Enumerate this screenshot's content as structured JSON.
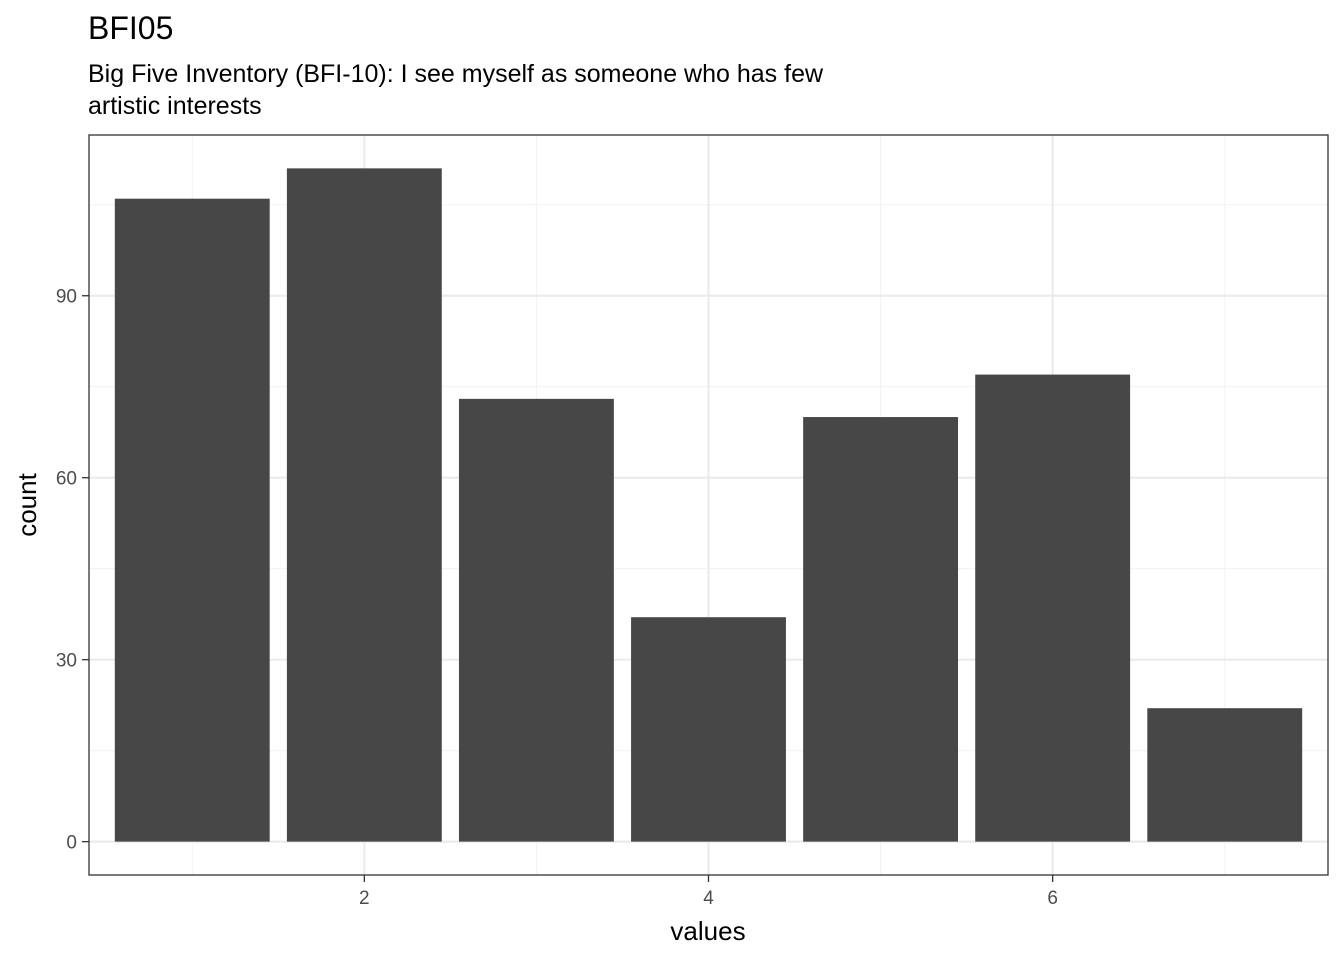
{
  "chart_data": {
    "type": "bar",
    "title": "BFI05",
    "subtitle_lines": [
      "Big Five Inventory (BFI-10): I see myself as someone who has few",
      "artistic interests"
    ],
    "xlabel": "values",
    "ylabel": "count",
    "x": [
      1,
      2,
      3,
      4,
      5,
      6,
      7
    ],
    "values": [
      106,
      111,
      73,
      37,
      70,
      77,
      22
    ],
    "xlim": [
      0.4,
      7.6
    ],
    "ylim": [
      -5.5,
      116.5
    ],
    "x_ticks": [
      2,
      4,
      6
    ],
    "x_tick_labels": [
      "2",
      "4",
      "6"
    ],
    "y_ticks": [
      0,
      30,
      60,
      90
    ],
    "y_tick_labels": [
      "0",
      "30",
      "60",
      "90"
    ],
    "grid": true,
    "legend": "none",
    "colors": {
      "bar": "#474747",
      "grid_major": "#ebebeb",
      "grid_minor": "#f3f3f3",
      "panel_border": "#333333"
    }
  }
}
